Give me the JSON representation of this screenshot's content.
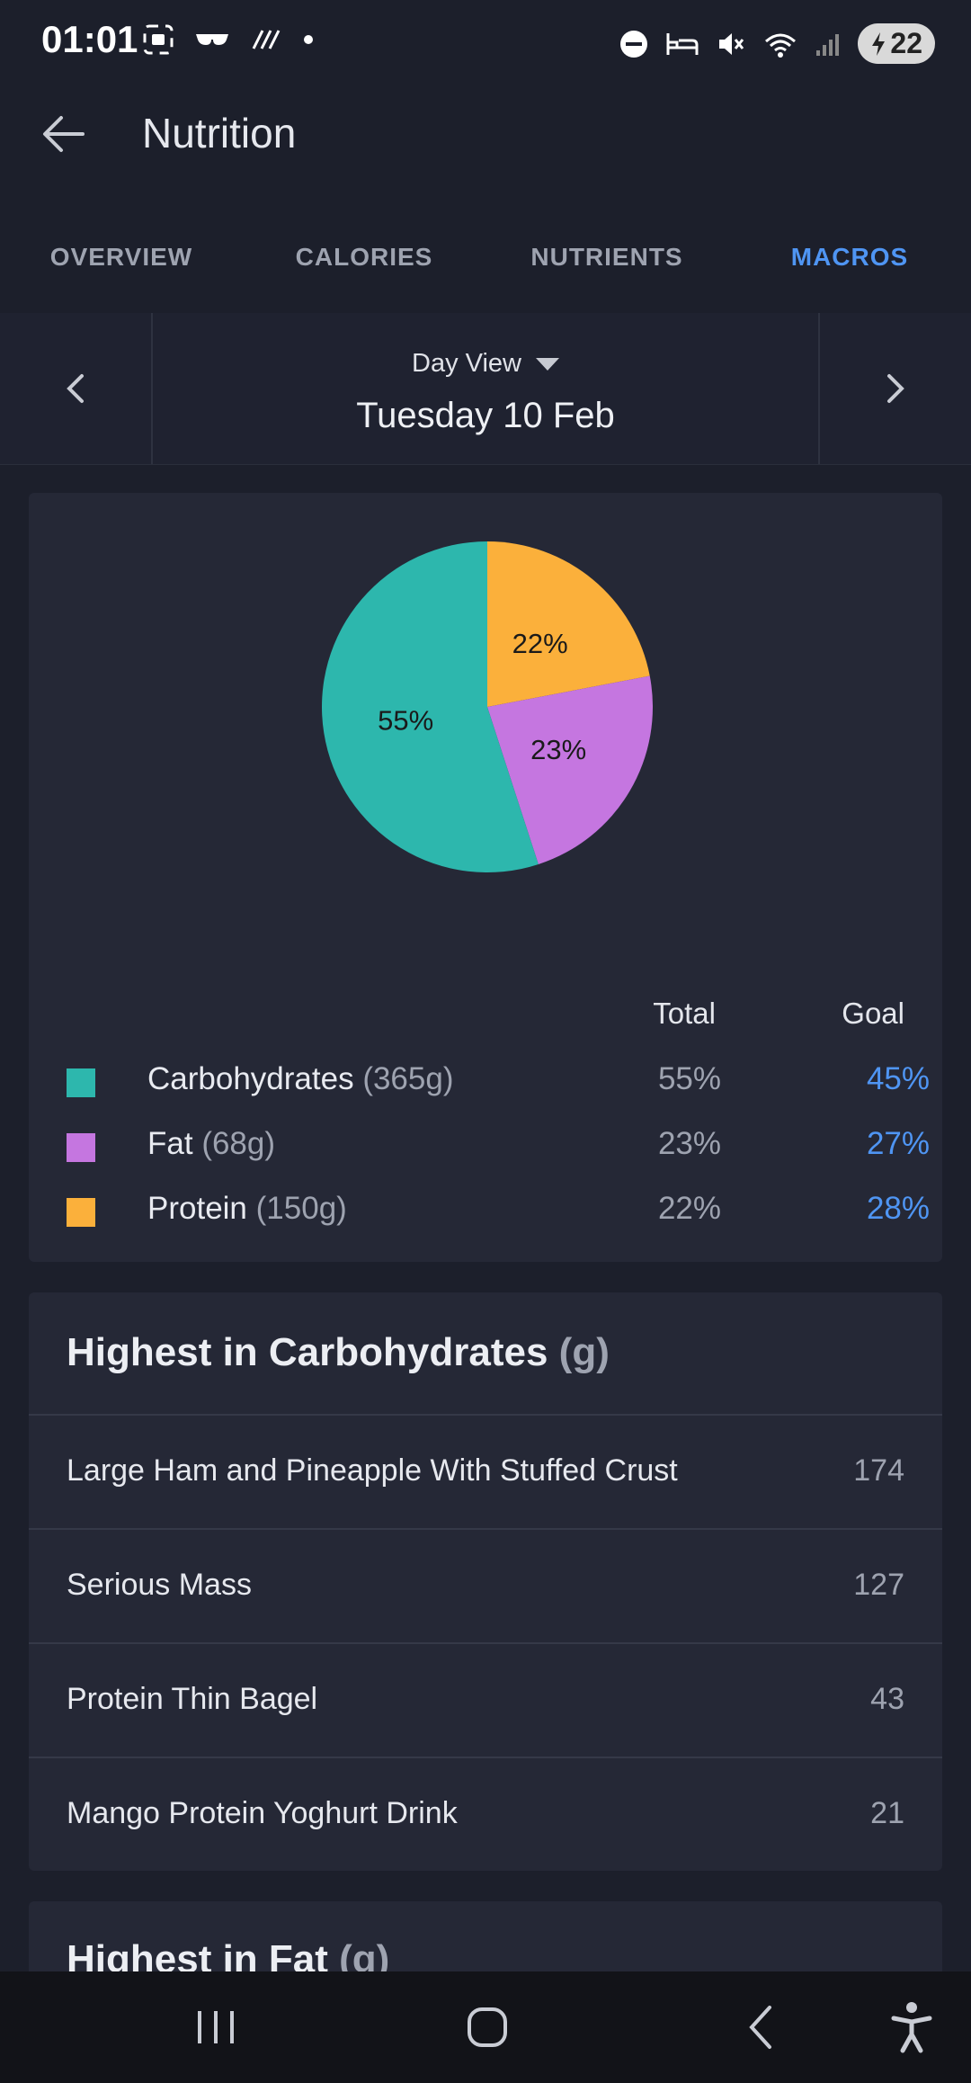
{
  "status": {
    "time": "01:01",
    "battery": "22"
  },
  "appbar": {
    "title": "Nutrition"
  },
  "tabs": [
    {
      "label": "OVERVIEW",
      "active": false
    },
    {
      "label": "CALORIES",
      "active": false
    },
    {
      "label": "NUTRIENTS",
      "active": false
    },
    {
      "label": "MACROS",
      "active": true
    }
  ],
  "daynav": {
    "view_label": "Day View",
    "date": "Tuesday 10 Feb"
  },
  "macros": {
    "total_header": "Total",
    "goal_header": "Goal",
    "rows": [
      {
        "name": "Carbohydrates",
        "amount": "(365g)",
        "total": "55%",
        "goal": "45%",
        "color": "#2db7ad"
      },
      {
        "name": "Fat",
        "amount": "(68g)",
        "total": "23%",
        "goal": "27%",
        "color": "#c576e0"
      },
      {
        "name": "Protein",
        "amount": "(150g)",
        "total": "22%",
        "goal": "28%",
        "color": "#fbb03b"
      }
    ]
  },
  "chart_data": {
    "type": "pie",
    "slices": [
      {
        "label": "Protein",
        "value": 22,
        "display": "22%",
        "color": "#fbb03b"
      },
      {
        "label": "Fat",
        "value": 23,
        "display": "23%",
        "color": "#c576e0"
      },
      {
        "label": "Carbohydrates",
        "value": 55,
        "display": "55%",
        "color": "#2db7ad"
      }
    ]
  },
  "carbs_card": {
    "title": "Highest in Carbohydrates",
    "unit": "(g)",
    "items": [
      {
        "name": "Large Ham and Pineapple With Stuffed Crust",
        "value": "174"
      },
      {
        "name": "Serious Mass",
        "value": "127"
      },
      {
        "name": "Protein Thin Bagel",
        "value": "43"
      },
      {
        "name": "Mango Protein Yoghurt Drink",
        "value": "21"
      }
    ]
  },
  "fat_card": {
    "title": "Highest in Fat",
    "unit": "(g)"
  }
}
